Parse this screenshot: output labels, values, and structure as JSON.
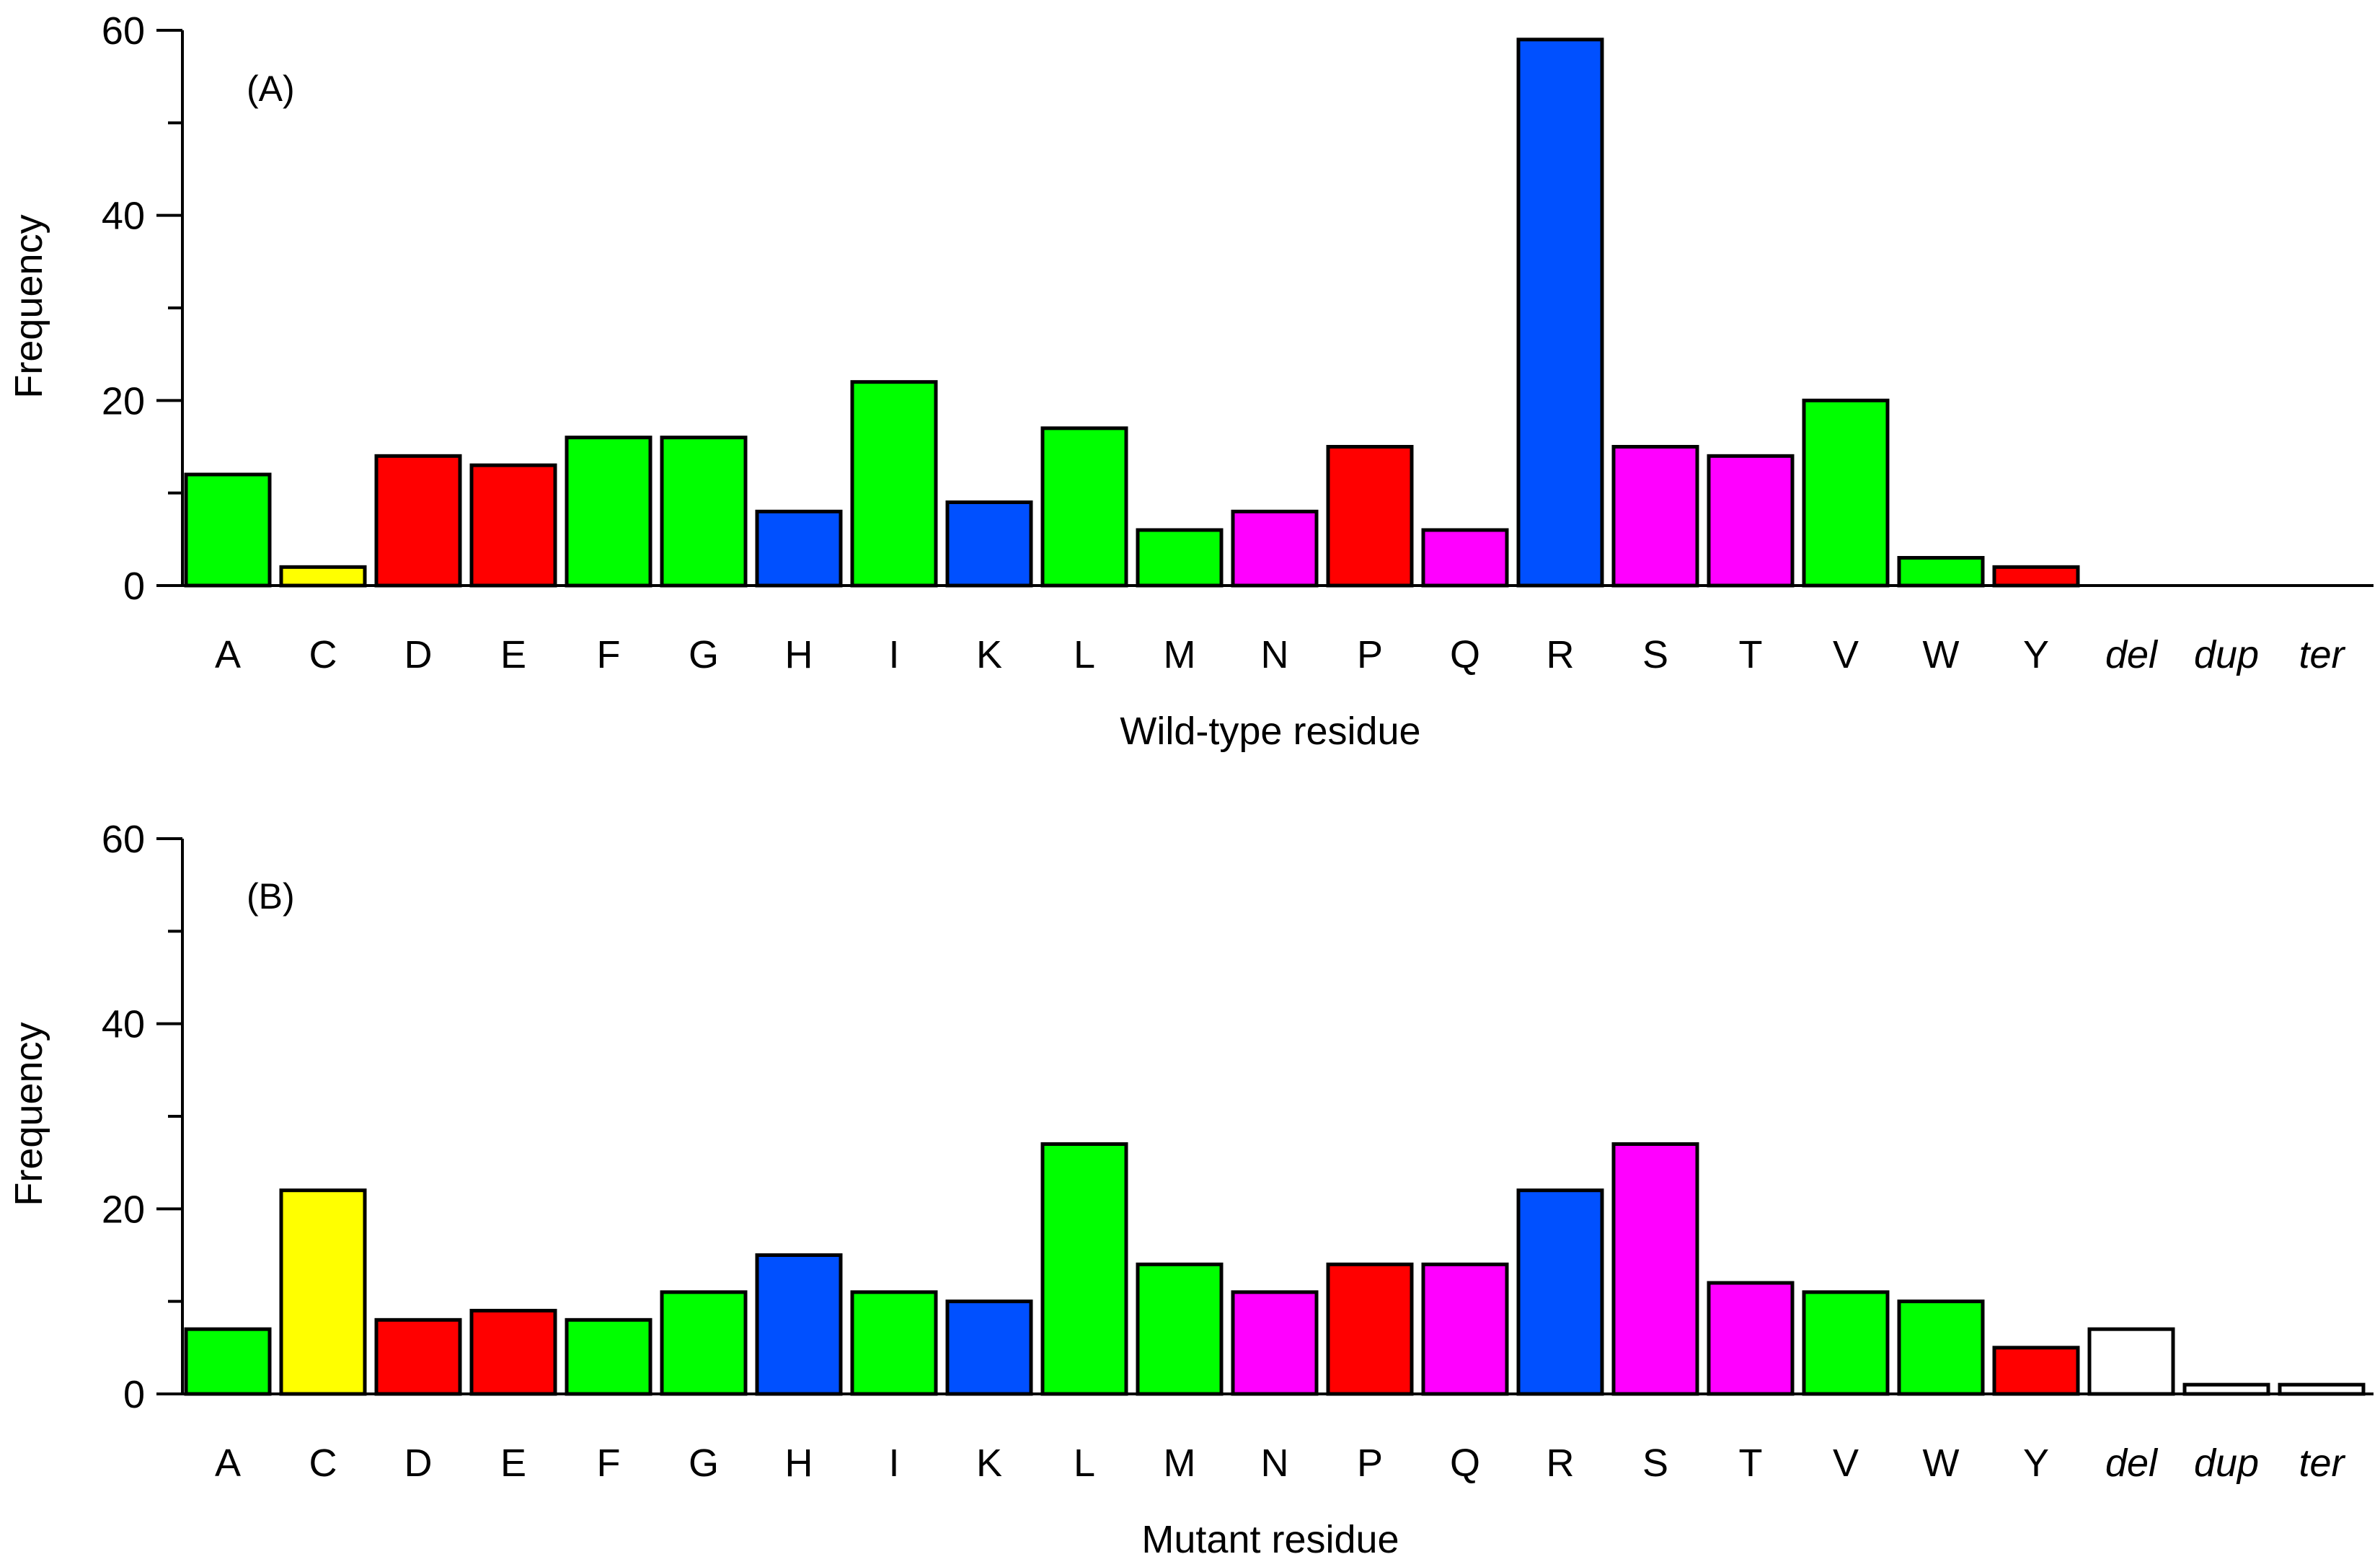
{
  "colors": {
    "green": "#00ff00",
    "yellow": "#ffff00",
    "red": "#ff0000",
    "blue": "#0050ff",
    "magenta": "#ff00ff",
    "white": "#ffffff"
  },
  "chart_data": [
    {
      "type": "bar",
      "panel_label": "(A)",
      "categories": [
        "A",
        "C",
        "D",
        "E",
        "F",
        "G",
        "H",
        "I",
        "K",
        "L",
        "M",
        "N",
        "P",
        "Q",
        "R",
        "S",
        "T",
        "V",
        "W",
        "Y",
        "del",
        "dup",
        "ter"
      ],
      "italic_categories": [
        "del",
        "dup",
        "ter"
      ],
      "values": [
        12,
        2,
        14,
        13,
        16,
        16,
        8,
        22,
        9,
        17,
        6,
        8,
        15,
        6,
        59,
        15,
        14,
        20,
        3,
        2,
        0,
        0,
        0
      ],
      "bar_colors": [
        "green",
        "yellow",
        "red",
        "red",
        "green",
        "green",
        "blue",
        "green",
        "blue",
        "green",
        "green",
        "magenta",
        "red",
        "magenta",
        "blue",
        "magenta",
        "magenta",
        "green",
        "green",
        "red",
        "white",
        "white",
        "white"
      ],
      "xlabel": "Wild-type residue",
      "ylabel": "Frequency",
      "ylim": [
        0,
        60
      ],
      "yticks": [
        0,
        20,
        40,
        60
      ],
      "grid": false
    },
    {
      "type": "bar",
      "panel_label": "(B)",
      "categories": [
        "A",
        "C",
        "D",
        "E",
        "F",
        "G",
        "H",
        "I",
        "K",
        "L",
        "M",
        "N",
        "P",
        "Q",
        "R",
        "S",
        "T",
        "V",
        "W",
        "Y",
        "del",
        "dup",
        "ter"
      ],
      "italic_categories": [
        "del",
        "dup",
        "ter"
      ],
      "values": [
        7,
        22,
        8,
        9,
        8,
        11,
        15,
        11,
        10,
        27,
        14,
        11,
        14,
        14,
        22,
        27,
        12,
        11,
        10,
        5,
        7,
        1,
        1
      ],
      "bar_colors": [
        "green",
        "yellow",
        "red",
        "red",
        "green",
        "green",
        "blue",
        "green",
        "blue",
        "green",
        "green",
        "magenta",
        "red",
        "magenta",
        "blue",
        "magenta",
        "magenta",
        "green",
        "green",
        "red",
        "white",
        "white",
        "white"
      ],
      "xlabel": "Mutant residue",
      "ylabel": "Frequency",
      "ylim": [
        0,
        60
      ],
      "yticks": [
        0,
        20,
        40,
        60
      ],
      "grid": false
    }
  ]
}
